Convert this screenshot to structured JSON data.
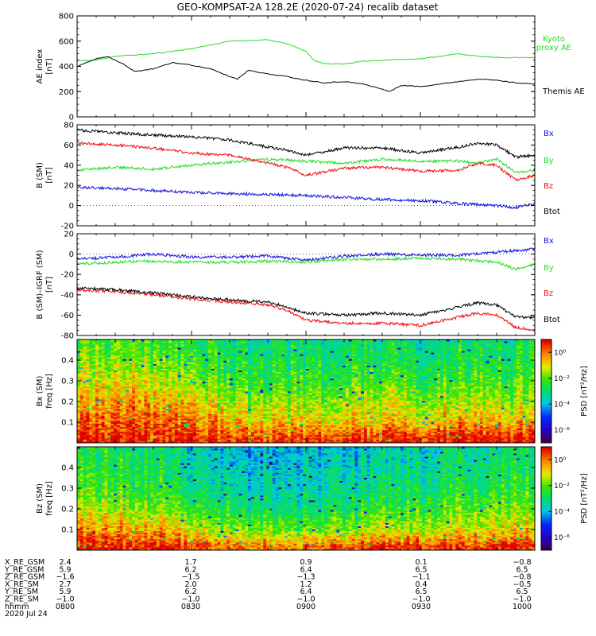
{
  "title": "GEO-KOMPSAT-2A 128.2E (2020-07-24) recalib dataset",
  "colors": {
    "black": "#000000",
    "green": "#22dd22",
    "red": "#ee1111",
    "blue": "#1111dd"
  },
  "chart_data": [
    {
      "type": "line",
      "ylabel_top": "AE index",
      "ylabel_bottom": "[nT]",
      "ylim": [
        0,
        800
      ],
      "yticks": [
        "0",
        "200",
        "400",
        "600",
        "800"
      ],
      "x_range": [
        0,
        120
      ],
      "x_unit": "minutes after 0800 UT",
      "series": [
        {
          "name": "Kyoto proxy AE",
          "color": "#22dd22",
          "x": [
            0,
            5,
            10,
            20,
            30,
            40,
            50,
            55,
            60,
            62,
            65,
            70,
            75,
            80,
            90,
            100,
            105,
            110,
            120
          ],
          "y": [
            445,
            450,
            480,
            500,
            540,
            600,
            610,
            580,
            520,
            450,
            420,
            420,
            440,
            450,
            460,
            500,
            480,
            470,
            470
          ]
        },
        {
          "name": "Themis AE",
          "color": "#000000",
          "x": [
            0,
            5,
            8,
            12,
            15,
            20,
            25,
            30,
            35,
            40,
            42,
            45,
            50,
            55,
            60,
            65,
            70,
            75,
            80,
            82,
            85,
            90,
            95,
            100,
            105,
            110,
            115,
            120
          ],
          "y": [
            400,
            460,
            480,
            420,
            360,
            380,
            430,
            410,
            380,
            320,
            300,
            370,
            340,
            320,
            290,
            270,
            280,
            260,
            220,
            200,
            250,
            240,
            260,
            280,
            300,
            290,
            270,
            260
          ]
        }
      ]
    },
    {
      "type": "line",
      "ylabel_top": "B (SM)",
      "ylabel_bottom": "[nT]",
      "ylim": [
        -20,
        80
      ],
      "yticks": [
        "-20",
        "0",
        "20",
        "40",
        "60",
        "80"
      ],
      "x_range": [
        0,
        120
      ],
      "series": [
        {
          "name": "Bx",
          "color": "#1111dd",
          "x": [
            0,
            10,
            20,
            30,
            40,
            50,
            60,
            70,
            80,
            90,
            100,
            110,
            115,
            120
          ],
          "y": [
            18,
            17,
            15,
            13,
            12,
            11,
            10,
            8,
            6,
            5,
            2,
            0,
            -2,
            2
          ]
        },
        {
          "name": "By",
          "color": "#22dd22",
          "x": [
            0,
            10,
            20,
            30,
            40,
            50,
            60,
            70,
            80,
            90,
            100,
            105,
            110,
            115,
            120
          ],
          "y": [
            35,
            38,
            36,
            40,
            43,
            46,
            44,
            42,
            46,
            44,
            44,
            42,
            46,
            33,
            35
          ]
        },
        {
          "name": "Bz",
          "color": "#ee1111",
          "x": [
            0,
            10,
            20,
            30,
            40,
            50,
            55,
            60,
            70,
            80,
            90,
            100,
            105,
            110,
            115,
            120
          ],
          "y": [
            62,
            60,
            57,
            52,
            50,
            42,
            38,
            30,
            37,
            38,
            34,
            35,
            42,
            40,
            25,
            30
          ]
        },
        {
          "name": "Btot",
          "color": "#000000",
          "x": [
            0,
            10,
            20,
            30,
            40,
            50,
            55,
            60,
            70,
            80,
            90,
            100,
            105,
            110,
            115,
            120
          ],
          "y": [
            75,
            72,
            70,
            68,
            65,
            58,
            55,
            50,
            57,
            57,
            52,
            58,
            62,
            60,
            48,
            50
          ]
        }
      ]
    },
    {
      "type": "line",
      "ylabel_top": "B (SM)–IGRF (SM)",
      "ylabel_bottom": "[nT]",
      "ylim": [
        -80,
        20
      ],
      "yticks": [
        "-80",
        "-60",
        "-40",
        "-20",
        "0",
        "20"
      ],
      "x_range": [
        0,
        120
      ],
      "series": [
        {
          "name": "Bx",
          "color": "#1111dd",
          "x": [
            0,
            10,
            20,
            30,
            40,
            50,
            60,
            70,
            80,
            90,
            100,
            110,
            120
          ],
          "y": [
            -5,
            -3,
            0,
            -3,
            -3,
            -2,
            -6,
            -2,
            0,
            -1,
            -1,
            2,
            5
          ]
        },
        {
          "name": "By",
          "color": "#22dd22",
          "x": [
            0,
            10,
            20,
            30,
            40,
            50,
            60,
            70,
            80,
            90,
            100,
            110,
            115,
            120
          ],
          "y": [
            -10,
            -8,
            -7,
            -8,
            -8,
            -7,
            -8,
            -5,
            -5,
            -4,
            -5,
            -8,
            -15,
            -10
          ]
        },
        {
          "name": "Bz",
          "color": "#ee1111",
          "x": [
            0,
            10,
            20,
            30,
            40,
            50,
            55,
            60,
            70,
            80,
            90,
            100,
            105,
            110,
            115,
            120
          ],
          "y": [
            -35,
            -37,
            -40,
            -44,
            -47,
            -50,
            -55,
            -65,
            -68,
            -68,
            -70,
            -62,
            -58,
            -60,
            -72,
            -75
          ]
        },
        {
          "name": "Btot",
          "color": "#000000",
          "x": [
            0,
            10,
            20,
            30,
            40,
            50,
            55,
            60,
            70,
            80,
            90,
            100,
            105,
            110,
            115,
            120
          ],
          "y": [
            -33,
            -35,
            -38,
            -42,
            -45,
            -47,
            -52,
            -58,
            -60,
            -58,
            -60,
            -52,
            -48,
            -50,
            -62,
            -62
          ]
        }
      ]
    },
    {
      "type": "heatmap",
      "ylabel_top": "Bx (SM)",
      "ylabel_bottom": "freq [Hz]",
      "ylim": [
        0,
        0.5
      ],
      "yticks": [
        "0.1",
        "0.2",
        "0.3",
        "0.4"
      ],
      "x_range": [
        0,
        120
      ],
      "colorbar_label": "PSD [nT²/Hz]",
      "colorbar_ticks": [
        "10⁰",
        "10⁻²",
        "10⁻⁴",
        "10⁻⁶"
      ],
      "clim_log10": [
        -7,
        1
      ],
      "psd_log10": {
        "times": [
          0,
          20,
          40,
          60,
          80,
          100,
          120
        ],
        "freqs": [
          0.02,
          0.1,
          0.2,
          0.3,
          0.4,
          0.5
        ],
        "values": [
          [
            1.0,
            0.2,
            -0.5,
            -1.2,
            -1.8,
            -2.2
          ],
          [
            0.8,
            0.3,
            -0.3,
            -1.2,
            -1.8,
            -2.3
          ],
          [
            0.5,
            -0.5,
            -1.5,
            -2.3,
            -2.7,
            -3.0
          ],
          [
            0.5,
            -0.8,
            -1.8,
            -2.5,
            -2.8,
            -3.2
          ],
          [
            0.7,
            -0.8,
            -1.5,
            -2.3,
            -2.8,
            -3.2
          ],
          [
            1.0,
            -0.5,
            -1.5,
            -2.3,
            -2.7,
            -3.0
          ],
          [
            1.0,
            -0.5,
            -1.5,
            -2.2,
            -2.6,
            -2.9
          ]
        ]
      }
    },
    {
      "type": "heatmap",
      "ylabel_top": "Bz (SM)",
      "ylabel_bottom": "freq [Hz]",
      "ylim": [
        0,
        0.5
      ],
      "yticks": [
        "0.1",
        "0.2",
        "0.3",
        "0.4"
      ],
      "x_range": [
        0,
        120
      ],
      "colorbar_label": "PSD [nT²/Hz]",
      "colorbar_ticks": [
        "10⁰",
        "10⁻²",
        "10⁻⁴",
        "10⁻⁶"
      ],
      "clim_log10": [
        -7,
        1
      ],
      "psd_log10": {
        "times": [
          0,
          20,
          40,
          60,
          80,
          100,
          120
        ],
        "freqs": [
          0.02,
          0.1,
          0.2,
          0.3,
          0.4,
          0.5
        ],
        "values": [
          [
            1.0,
            0.0,
            -1.0,
            -1.8,
            -2.2,
            -2.5
          ],
          [
            0.8,
            -0.5,
            -1.8,
            -2.5,
            -2.8,
            -3.0
          ],
          [
            0.0,
            -1.8,
            -2.8,
            -3.5,
            -3.8,
            -4.0
          ],
          [
            0.0,
            -2.0,
            -3.0,
            -3.5,
            -3.8,
            -4.0
          ],
          [
            0.5,
            -1.5,
            -2.5,
            -3.2,
            -3.6,
            -3.8
          ],
          [
            0.5,
            -1.0,
            -2.0,
            -2.6,
            -3.0,
            -3.2
          ],
          [
            0.8,
            -0.8,
            -1.8,
            -2.5,
            -2.8,
            -3.0
          ]
        ]
      }
    }
  ],
  "orbit_table": {
    "row_labels": [
      "X_RE_GSM",
      "Y_RE_GSM",
      "Z_RE_GSM",
      "X_RE_SM",
      "Y_RE_SM",
      "Z_RE_SM",
      "hhmm",
      "2020 Jul 24"
    ],
    "columns": [
      [
        "2.4",
        "5.9",
        "−1.6",
        "2.7",
        "5.9",
        "−1.0",
        "0800"
      ],
      [
        "1.7",
        "6.2",
        "−1.5",
        "2.0",
        "6.2",
        "−1.0",
        "0830"
      ],
      [
        "0.9",
        "6.4",
        "−1.3",
        "1.2",
        "6.4",
        "−1.0",
        "0900"
      ],
      [
        "0.1",
        "6.5",
        "−1.1",
        "0.4",
        "6.5",
        "−1.0",
        "0930"
      ],
      [
        "−0.8",
        "6.5",
        "−0.8",
        "−0.5",
        "6.5",
        "−1.0",
        "1000"
      ]
    ]
  }
}
